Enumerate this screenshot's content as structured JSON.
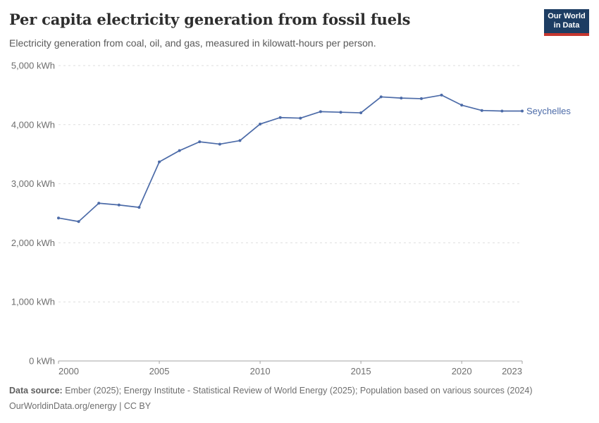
{
  "header": {
    "title": "Per capita electricity generation from fossil fuels",
    "subtitle": "Electricity generation from coal, oil, and gas, measured in kilowatt-hours per person.",
    "logo": {
      "line1": "Our World",
      "line2": "in Data"
    }
  },
  "chart_data": {
    "type": "line",
    "title": "Per capita electricity generation from fossil fuels",
    "subtitle": "Electricity generation from coal, oil, and gas, measured in kilowatt-hours per person.",
    "unit": "kWh",
    "x": [
      2000,
      2001,
      2002,
      2003,
      2004,
      2005,
      2006,
      2007,
      2008,
      2009,
      2010,
      2011,
      2012,
      2013,
      2014,
      2015,
      2016,
      2017,
      2018,
      2019,
      2020,
      2021,
      2022,
      2023
    ],
    "series": [
      {
        "name": "Seychelles",
        "values": [
          2420,
          2360,
          2670,
          2640,
          2600,
          3370,
          3560,
          3710,
          3670,
          3730,
          4010,
          4120,
          4110,
          4220,
          4210,
          4200,
          4470,
          4450,
          4440,
          4500,
          4330,
          4240,
          4230,
          4230
        ]
      }
    ],
    "xlim": [
      2000,
      2023
    ],
    "ylim": [
      0,
      5000
    ],
    "grid": true,
    "legend_position": "end-of-line",
    "yticks": [
      {
        "value": 0,
        "label": "0 kWh"
      },
      {
        "value": 1000,
        "label": "1,000 kWh"
      },
      {
        "value": 2000,
        "label": "2,000 kWh"
      },
      {
        "value": 3000,
        "label": "3,000 kWh"
      },
      {
        "value": 4000,
        "label": "4,000 kWh"
      },
      {
        "value": 5000,
        "label": "5,000 kWh"
      }
    ],
    "xticks": [
      {
        "value": 2000,
        "label": "2000",
        "align": "start"
      },
      {
        "value": 2005,
        "label": "2005",
        "align": "middle"
      },
      {
        "value": 2010,
        "label": "2010",
        "align": "middle"
      },
      {
        "value": 2015,
        "label": "2015",
        "align": "middle"
      },
      {
        "value": 2020,
        "label": "2020",
        "align": "middle"
      },
      {
        "value": 2023,
        "label": "2023",
        "align": "end"
      }
    ]
  },
  "colors": {
    "line": "#4c6ba8",
    "entity_label": "#4c6ba8",
    "grid": "#dedede",
    "axis": "#a3a3a3",
    "tick_text": "#6e6e6e",
    "title": "#2e2e2e",
    "subtitle": "#595959",
    "logo_bg": "#1d3d63",
    "logo_red": "#c5362f"
  },
  "footer": {
    "source_label": "Data source:",
    "source_text": " Ember (2025); Energy Institute - Statistical Review of World Energy (2025); Population based on various sources (2024)",
    "link": "OurWorldinData.org/energy",
    "separator": " | ",
    "license": "CC BY"
  }
}
